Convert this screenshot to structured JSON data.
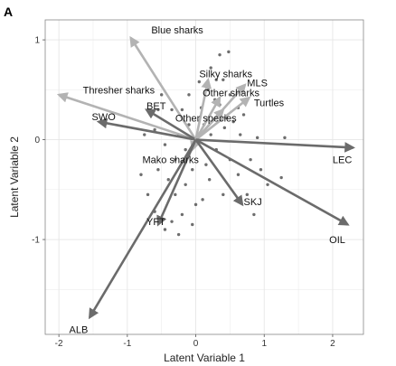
{
  "panel_label": "A",
  "chart_data": {
    "type": "biplot",
    "xlabel": "Latent Variable 1",
    "ylabel": "Latent Variable 2",
    "xlim": [
      -2.2,
      2.45
    ],
    "ylim": [
      -1.95,
      1.2
    ],
    "xticks": [
      -2,
      -1,
      0,
      1,
      2
    ],
    "yticks": [
      -1,
      0,
      1
    ],
    "grid": true,
    "background": "#ffffff",
    "grid_color": "#e6e6e6",
    "point_color": "#555555",
    "points": [
      [
        0.35,
        0.85
      ],
      [
        0.48,
        0.88
      ],
      [
        0.22,
        0.72
      ],
      [
        0.3,
        0.6
      ],
      [
        0.4,
        0.6
      ],
      [
        0.18,
        0.5
      ],
      [
        0.05,
        0.58
      ],
      [
        0.5,
        0.45
      ],
      [
        0.62,
        0.32
      ],
      [
        0.35,
        0.35
      ],
      [
        0.7,
        0.25
      ],
      [
        -0.1,
        0.45
      ],
      [
        -0.5,
        0.45
      ],
      [
        -0.35,
        0.3
      ],
      [
        -0.2,
        0.3
      ],
      [
        -0.6,
        0.1
      ],
      [
        -0.75,
        0.05
      ],
      [
        -0.45,
        -0.05
      ],
      [
        -0.25,
        0.05
      ],
      [
        -0.15,
        -0.1
      ],
      [
        0.12,
        0.15
      ],
      [
        0.22,
        0.05
      ],
      [
        0.42,
        0.12
      ],
      [
        0.55,
        0.18
      ],
      [
        0.65,
        0.05
      ],
      [
        0.9,
        0.02
      ],
      [
        1.3,
        0.02
      ],
      [
        0.3,
        -0.1
      ],
      [
        0.5,
        -0.2
      ],
      [
        0.62,
        -0.35
      ],
      [
        0.8,
        -0.2
      ],
      [
        0.95,
        -0.3
      ],
      [
        1.05,
        -0.45
      ],
      [
        1.25,
        -0.38
      ],
      [
        0.75,
        -0.55
      ],
      [
        0.85,
        -0.75
      ],
      [
        -0.7,
        -0.55
      ],
      [
        -0.55,
        -0.3
      ],
      [
        -0.4,
        -0.4
      ],
      [
        -0.3,
        -0.55
      ],
      [
        -0.15,
        -0.45
      ],
      [
        -0.05,
        -0.3
      ],
      [
        0.1,
        -0.6
      ],
      [
        -0.2,
        -0.75
      ],
      [
        -0.35,
        -0.82
      ],
      [
        -0.45,
        -0.9
      ],
      [
        -0.6,
        -0.72
      ],
      [
        -0.05,
        -0.85
      ],
      [
        -0.25,
        -0.95
      ],
      [
        0.0,
        -0.65
      ],
      [
        0.15,
        -0.25
      ],
      [
        -0.8,
        -0.35
      ],
      [
        0.28,
        0.4
      ],
      [
        0.08,
        0.32
      ],
      [
        -0.55,
        0.3
      ],
      [
        0.45,
        0.22
      ],
      [
        -0.1,
        0.15
      ],
      [
        0.2,
        -0.4
      ],
      [
        0.4,
        -0.55
      ],
      [
        -0.3,
        -0.2
      ]
    ],
    "vectors": [
      {
        "label": "Blue sharks",
        "x": -0.95,
        "y": 1.02,
        "color": "#b3b3b3",
        "label_x": -0.65,
        "label_y": 1.1
      },
      {
        "label": "Thresher sharks",
        "x": -2.0,
        "y": 0.45,
        "color": "#b3b3b3",
        "label_x": -1.65,
        "label_y": 0.5
      },
      {
        "label": "SWO",
        "x": -1.42,
        "y": 0.18,
        "color": "#6b6b6b",
        "label_x": -1.52,
        "label_y": 0.23
      },
      {
        "label": "BET",
        "x": -0.72,
        "y": 0.3,
        "color": "#6b6b6b",
        "label_x": -0.72,
        "label_y": 0.34
      },
      {
        "label": "Silky sharks",
        "x": 0.18,
        "y": 0.6,
        "color": "#b3b3b3",
        "label_x": 0.05,
        "label_y": 0.66
      },
      {
        "label": "Other sharks",
        "x": 0.35,
        "y": 0.42,
        "color": "#b3b3b3",
        "label_x": 0.1,
        "label_y": 0.47
      },
      {
        "label": "MLS",
        "x": 0.72,
        "y": 0.55,
        "color": "#b3b3b3",
        "label_x": 0.75,
        "label_y": 0.57
      },
      {
        "label": "Turtles",
        "x": 0.78,
        "y": 0.42,
        "color": "#b3b3b3",
        "label_x": 0.85,
        "label_y": 0.37
      },
      {
        "label": "Other species",
        "x": 0.4,
        "y": 0.3,
        "color": "#b3b3b3",
        "label_x": -0.3,
        "label_y": 0.22
      },
      {
        "label": "Mako sharks",
        "x": -0.05,
        "y": -0.1,
        "color": "#b3b3b3",
        "label_x": -0.78,
        "label_y": -0.2
      },
      {
        "label": "LEC",
        "x": 2.3,
        "y": -0.08,
        "color": "#6b6b6b",
        "label_x": 2.0,
        "label_y": -0.2
      },
      {
        "label": "OIL",
        "x": 2.22,
        "y": -0.85,
        "color": "#6b6b6b",
        "label_x": 1.95,
        "label_y": -1.0
      },
      {
        "label": "SKJ",
        "x": 0.68,
        "y": -0.65,
        "color": "#6b6b6b",
        "label_x": 0.7,
        "label_y": -0.62
      },
      {
        "label": "YFT",
        "x": -0.55,
        "y": -0.85,
        "color": "#6b6b6b",
        "label_x": -0.72,
        "label_y": -0.82
      },
      {
        "label": "ALB",
        "x": -1.55,
        "y": -1.78,
        "color": "#6b6b6b",
        "label_x": -1.85,
        "label_y": -1.9
      }
    ]
  }
}
